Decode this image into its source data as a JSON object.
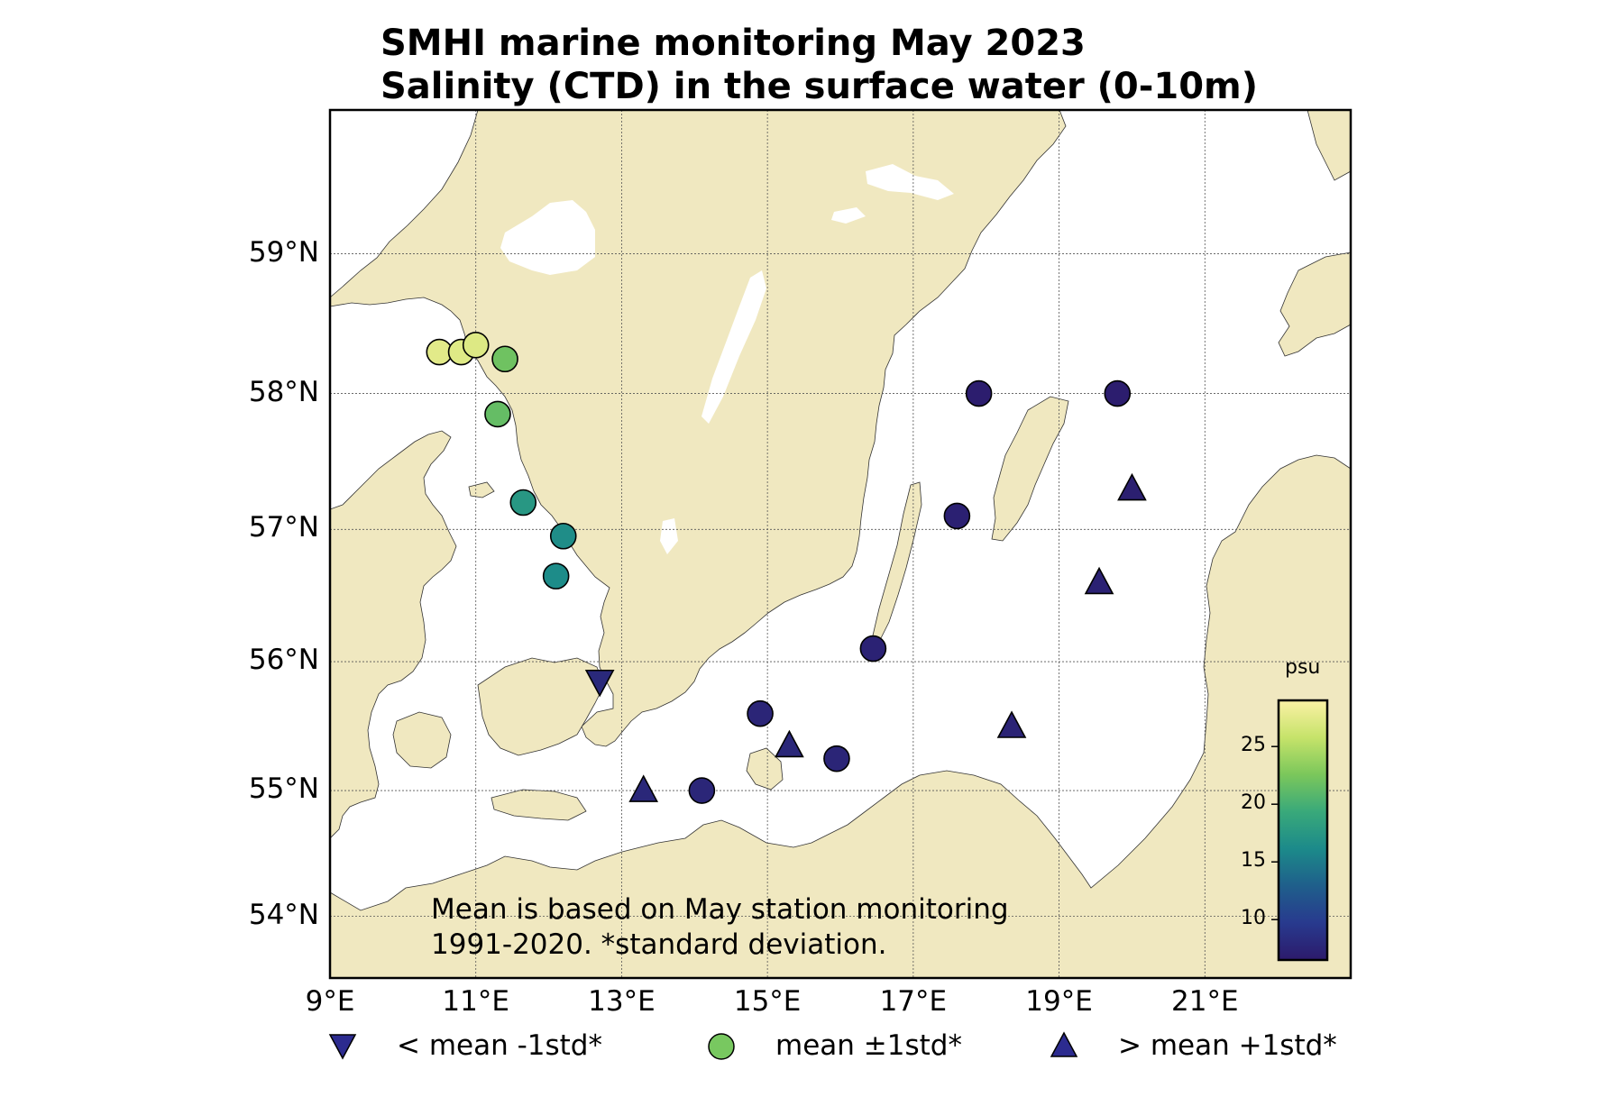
{
  "title": {
    "line1": "SMHI marine monitoring May 2023",
    "line2": "Salinity (CTD) in the surface water (0-10m)"
  },
  "map": {
    "lon_range": [
      9,
      23
    ],
    "lat_range": [
      53.5,
      60
    ],
    "lat_ticks": [
      {
        "value": 54,
        "label": "54°N"
      },
      {
        "value": 55,
        "label": "55°N"
      },
      {
        "value": 56,
        "label": "56°N"
      },
      {
        "value": 57,
        "label": "57°N"
      },
      {
        "value": 58,
        "label": "58°N"
      },
      {
        "value": 59,
        "label": "59°N"
      }
    ],
    "lon_ticks": [
      {
        "value": 9,
        "label": "9°E"
      },
      {
        "value": 11,
        "label": "11°E"
      },
      {
        "value": 13,
        "label": "13°E"
      },
      {
        "value": 15,
        "label": "15°E"
      },
      {
        "value": 17,
        "label": "17°E"
      },
      {
        "value": 19,
        "label": "19°E"
      },
      {
        "value": 21,
        "label": "21°E"
      }
    ],
    "colors": {
      "land": "#f0e8c0",
      "sea": "#ffffff",
      "grid": "#555555"
    }
  },
  "stations": [
    {
      "lon": 10.5,
      "lat": 58.3,
      "salinity": 27.5,
      "marker": "circle"
    },
    {
      "lon": 10.8,
      "lat": 58.3,
      "salinity": 27.3,
      "marker": "circle"
    },
    {
      "lon": 11.0,
      "lat": 58.35,
      "salinity": 27.2,
      "marker": "circle"
    },
    {
      "lon": 11.4,
      "lat": 58.25,
      "salinity": 22.0,
      "marker": "circle"
    },
    {
      "lon": 11.3,
      "lat": 57.85,
      "salinity": 21.5,
      "marker": "circle"
    },
    {
      "lon": 11.65,
      "lat": 57.2,
      "salinity": 17.5,
      "marker": "circle"
    },
    {
      "lon": 12.2,
      "lat": 56.95,
      "salinity": 16.5,
      "marker": "circle"
    },
    {
      "lon": 12.1,
      "lat": 56.65,
      "salinity": 16.3,
      "marker": "circle"
    },
    {
      "lon": 12.7,
      "lat": 55.85,
      "salinity": 8.0,
      "marker": "triangle-down"
    },
    {
      "lon": 13.3,
      "lat": 55.0,
      "salinity": 7.8,
      "marker": "triangle-up"
    },
    {
      "lon": 14.1,
      "lat": 55.0,
      "salinity": 7.7,
      "marker": "circle"
    },
    {
      "lon": 14.9,
      "lat": 55.6,
      "salinity": 7.6,
      "marker": "circle"
    },
    {
      "lon": 15.3,
      "lat": 55.35,
      "salinity": 7.8,
      "marker": "triangle-up"
    },
    {
      "lon": 15.95,
      "lat": 55.25,
      "salinity": 7.6,
      "marker": "circle"
    },
    {
      "lon": 16.45,
      "lat": 56.1,
      "salinity": 7.3,
      "marker": "circle"
    },
    {
      "lon": 17.6,
      "lat": 57.1,
      "salinity": 7.1,
      "marker": "circle"
    },
    {
      "lon": 17.9,
      "lat": 58.0,
      "salinity": 6.8,
      "marker": "circle"
    },
    {
      "lon": 19.8,
      "lat": 58.0,
      "salinity": 6.8,
      "marker": "circle"
    },
    {
      "lon": 20.0,
      "lat": 57.3,
      "salinity": 7.0,
      "marker": "triangle-up"
    },
    {
      "lon": 19.55,
      "lat": 56.6,
      "salinity": 7.2,
      "marker": "triangle-up"
    },
    {
      "lon": 18.35,
      "lat": 55.5,
      "salinity": 7.4,
      "marker": "triangle-up"
    }
  ],
  "footnote": {
    "line1": "Mean is based on May station monitoring",
    "line2": "1991-2020. *standard deviation."
  },
  "legend": [
    {
      "marker": "triangle-down",
      "color": "#2c2b8f",
      "label": "< mean -1std*"
    },
    {
      "marker": "circle",
      "color": "#78c860",
      "label": "mean ±1std*"
    },
    {
      "marker": "triangle-up",
      "color": "#2c2b8f",
      "label": "> mean +1std*"
    }
  ],
  "colorbar": {
    "title": "psu",
    "range": [
      6.5,
      29
    ],
    "ticks": [
      {
        "value": 10,
        "label": "10"
      },
      {
        "value": 15,
        "label": "15"
      },
      {
        "value": 20,
        "label": "20"
      },
      {
        "value": 25,
        "label": "25"
      }
    ],
    "colormap": [
      "#2c1a6b",
      "#283a8e",
      "#1f5f8b",
      "#1c8a8a",
      "#39a97a",
      "#7bc75b",
      "#c6e36a",
      "#fbf1a5"
    ]
  }
}
